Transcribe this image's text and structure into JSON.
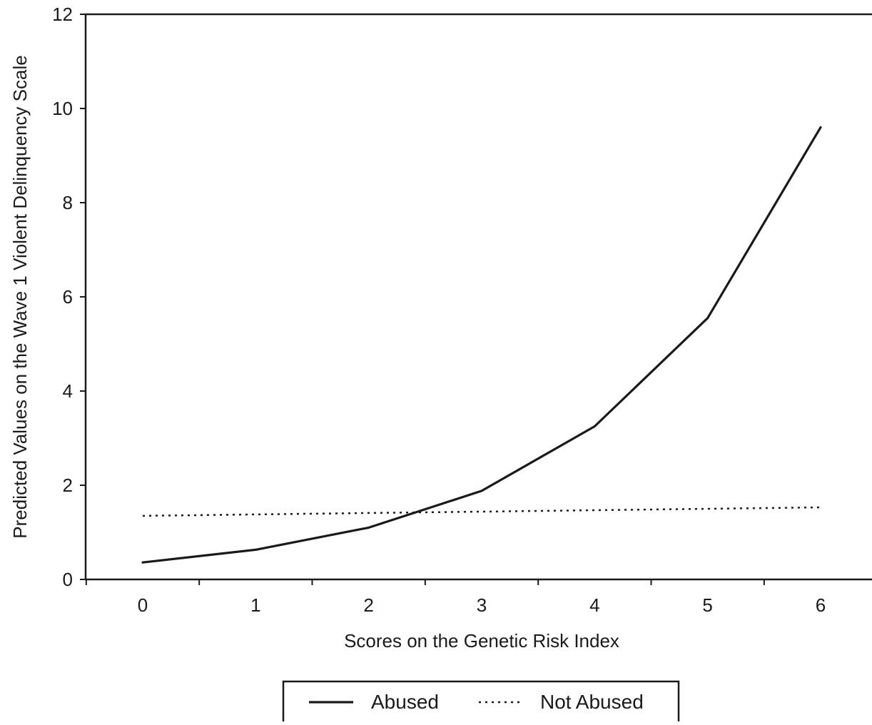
{
  "chart_data": {
    "type": "line",
    "title": "",
    "xlabel": "Scores on the Genetic Risk Index",
    "ylabel": "Predicted Values on the Wave 1 Violent Delinquency Scale",
    "x": [
      0,
      1,
      2,
      3,
      4,
      5,
      6
    ],
    "xlim": [
      -0.5,
      6.5
    ],
    "ylim": [
      0,
      12
    ],
    "xticks": [
      "0",
      "1",
      "2",
      "3",
      "4",
      "5",
      "6"
    ],
    "yticks": [
      "0",
      "2",
      "4",
      "6",
      "8",
      "10",
      "12"
    ],
    "grid": false,
    "legend_position": "bottom",
    "series": [
      {
        "name": "Abused",
        "line_style": "solid",
        "color": "#1a1a1a",
        "values": [
          0.36,
          0.63,
          1.1,
          1.88,
          3.25,
          5.55,
          9.6
        ]
      },
      {
        "name": "Not Abused",
        "line_style": "dotted",
        "color": "#1a1a1a",
        "values": [
          1.35,
          1.38,
          1.41,
          1.44,
          1.47,
          1.5,
          1.53
        ]
      }
    ]
  }
}
